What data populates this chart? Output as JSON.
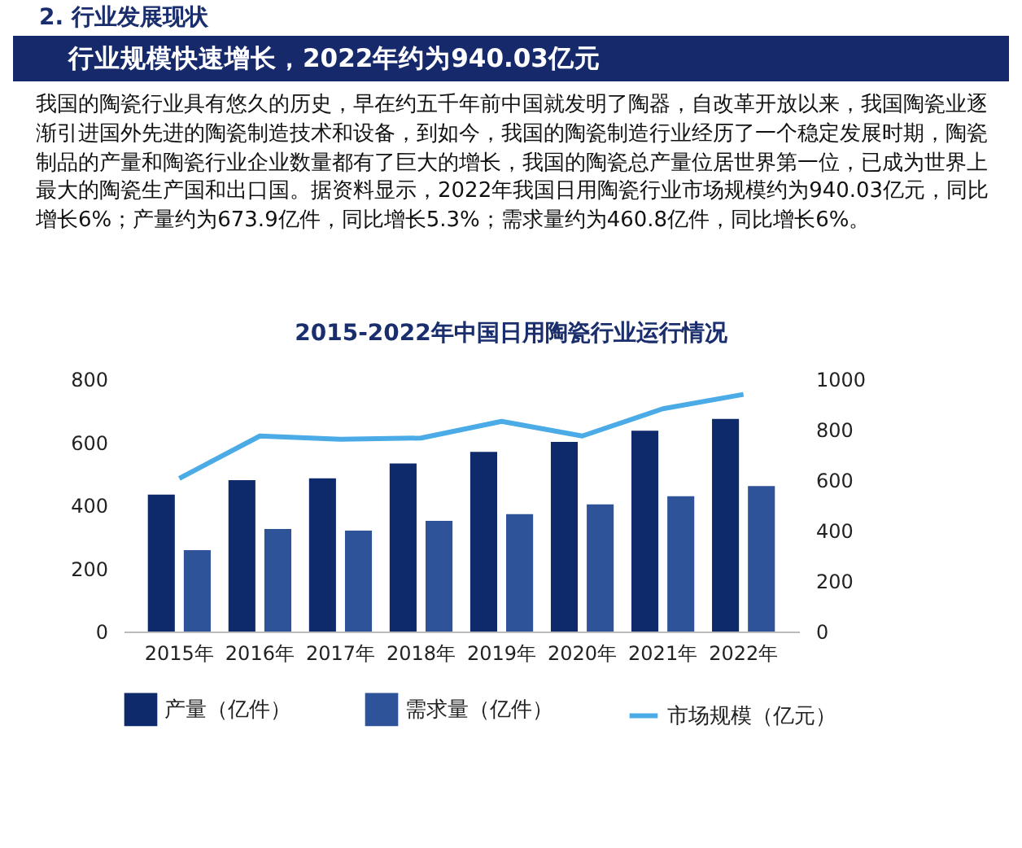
{
  "chart_data": {
    "type": "bar",
    "title": "2015-2022年中国日用陶瓷行业运行情况",
    "annotations": [
      "2. 行业发展现状",
      "行业规模快速增长，2022年约为940.03亿元",
      "我国的陶瓷行业具有悠久的历史，早在约五千年前中国就发明了陶器，自改革开放以来，我国陶瓷业逐渐引进国外先进的陶瓷制造技术和设备，到如今，我国的陶瓷制造行业经历了一个稳定发展时期，陶瓷制品的产量和陶瓷行业企业数量都有了巨大的增长，我国的陶瓷总产量位居世界第一位，已成为世界上最大的陶瓷生产国和出口国。据资料显示，2022年我国日用陶瓷行业市场规模约为940.03亿元，同比增长6%；产量约为673.9亿件，同比增长5.3%；需求量约为460.8亿件，同比增长6%。"
    ],
    "categories": [
      "2015年",
      "2016年",
      "2017年",
      "2018年",
      "2019年",
      "2020年",
      "2021年",
      "2022年"
    ],
    "series": [
      {
        "name": "产量（亿件）",
        "color": "#0e2a6b",
        "values": [
          434,
          480,
          486,
          533,
          570,
          601,
          637,
          674
        ]
      },
      {
        "name": "需求量（亿件）",
        "color": "#2e5399",
        "values": [
          258,
          325,
          320,
          351,
          372,
          403,
          429,
          461
        ]
      },
      {
        "name": "市场规模（亿元）",
        "type": "line",
        "axis": "y2",
        "color": "#4aabe6",
        "values": [
          607,
          775,
          762,
          767,
          833,
          775,
          883,
          940
        ]
      }
    ],
    "ylim": [
      0,
      800
    ],
    "yticks": [
      0,
      200,
      400,
      600,
      800
    ],
    "y2lim": [
      0,
      1000
    ],
    "y2ticks": [
      0,
      200,
      400,
      600,
      800,
      1000
    ],
    "grid": false,
    "legend": "bottom"
  }
}
